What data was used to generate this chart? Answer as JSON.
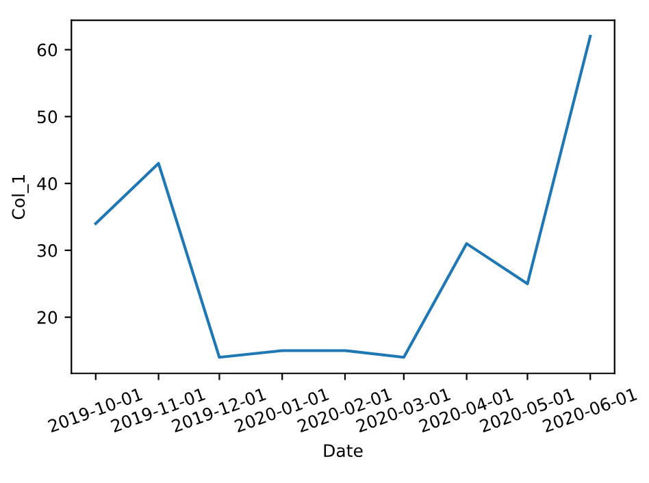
{
  "chart_data": {
    "type": "line",
    "xlabel": "Date",
    "ylabel": "Col_1",
    "x": [
      "2019-10-01",
      "2019-11-01",
      "2019-12-01",
      "2020-01-01",
      "2020-02-01",
      "2020-03-01",
      "2020-04-01",
      "2020-05-01",
      "2020-06-01"
    ],
    "series": [
      {
        "color": "#1f77b4",
        "values": [
          34,
          43,
          14,
          15,
          15,
          14,
          31,
          25,
          62
        ]
      }
    ],
    "xlim": [
      "2019-09-19",
      "2020-06-13"
    ],
    "xticks": [
      "2019-10-01",
      "2019-11-01",
      "2019-12-01",
      "2020-01-01",
      "2020-02-01",
      "2020-03-01",
      "2020-04-01",
      "2020-05-01",
      "2020-06-01"
    ],
    "ylim": [
      11.6,
      64.4
    ],
    "yticks": [
      20,
      30,
      40,
      50,
      60
    ],
    "grid": false,
    "legend": false
  }
}
